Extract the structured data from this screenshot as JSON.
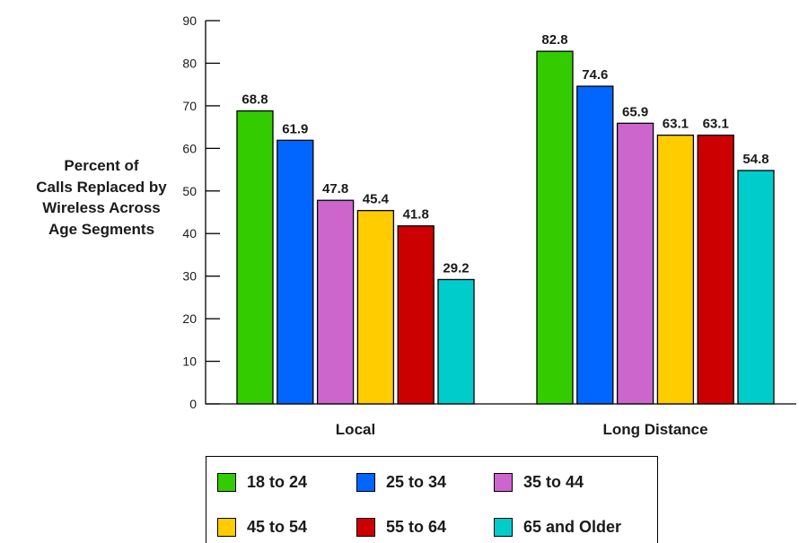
{
  "chart_data": {
    "type": "bar",
    "ylabel_lines": [
      "Percent of",
      "Calls Replaced by",
      "Wireless Across",
      "Age Segments"
    ],
    "categories": [
      "Local",
      "Long Distance"
    ],
    "ylim": [
      0,
      90
    ],
    "yticks": [
      0,
      10,
      20,
      30,
      40,
      50,
      60,
      70,
      80,
      90
    ],
    "grid": false,
    "legend_position": "bottom",
    "series": [
      {
        "name": "18 to 24",
        "color": "#33cc00",
        "values": [
          68.8,
          82.8
        ]
      },
      {
        "name": "25 to 34",
        "color": "#0066ff",
        "values": [
          61.9,
          74.6
        ]
      },
      {
        "name": "35 to 44",
        "color": "#cc66cc",
        "values": [
          47.8,
          65.9
        ]
      },
      {
        "name": "45 to 54",
        "color": "#ffcc00",
        "values": [
          45.4,
          63.1
        ]
      },
      {
        "name": "55 to 64",
        "color": "#cc0000",
        "values": [
          41.8,
          63.1
        ]
      },
      {
        "name": "65 and Older",
        "color": "#00cccc",
        "values": [
          29.2,
          54.8
        ]
      }
    ]
  }
}
